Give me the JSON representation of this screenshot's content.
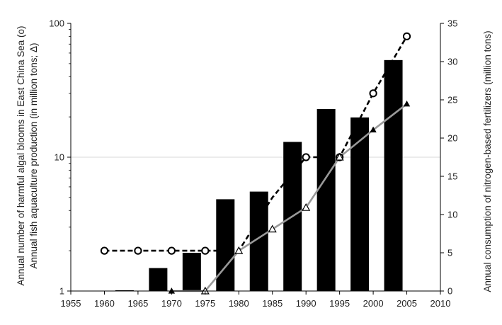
{
  "chart_data": {
    "type": "bar",
    "x_ticks": [
      "1955",
      "1960",
      "1965",
      "1970",
      "1975",
      "1980",
      "1985",
      "1990",
      "1995",
      "2000",
      "2005",
      "2010"
    ],
    "xlim": [
      1955,
      2010
    ],
    "y_left": {
      "label_line1": "Annual number of harmful algal blooms in East China Sea (o)",
      "label_line2": "Annual fish aquaculture production (in million tons; Δ)",
      "scale": "log",
      "range": [
        1,
        100
      ],
      "ticks": [
        {
          "value": 1,
          "label": "1"
        },
        {
          "value": 10,
          "label": "10"
        },
        {
          "value": 100,
          "label": "100"
        }
      ]
    },
    "y_right": {
      "label": "Annual consumption of nitrogen-based fertilizers (million tons)",
      "scale": "linear",
      "range": [
        0,
        35
      ],
      "ticks": [
        {
          "value": 0,
          "label": "0"
        },
        {
          "value": 5,
          "label": "5"
        },
        {
          "value": 10,
          "label": "10"
        },
        {
          "value": 15,
          "label": "15"
        },
        {
          "value": 20,
          "label": "20"
        },
        {
          "value": 25,
          "label": "25"
        },
        {
          "value": 30,
          "label": "30"
        },
        {
          "value": 35,
          "label": "35"
        }
      ]
    },
    "grid": "horizontal at 10 on left axis",
    "legend": "none",
    "series": [
      {
        "kind": "bar",
        "axis": "right",
        "color": "#000000",
        "points": [
          {
            "x": 1963,
            "y": 0.1
          },
          {
            "x": 1968,
            "y": 3.0
          },
          {
            "x": 1973,
            "y": 5.0
          },
          {
            "x": 1978,
            "y": 12.0
          },
          {
            "x": 1983,
            "y": 13.0
          },
          {
            "x": 1988,
            "y": 19.5
          },
          {
            "x": 1993,
            "y": 23.8
          },
          {
            "x": 1998,
            "y": 22.7
          },
          {
            "x": 2003,
            "y": 30.2
          }
        ]
      },
      {
        "kind": "line",
        "axis": "left",
        "style": "dashed",
        "marker": "circle",
        "color": "#000000",
        "points": [
          {
            "x": 1960,
            "y": 2
          },
          {
            "x": 1965,
            "y": 2
          },
          {
            "x": 1970,
            "y": 2
          },
          {
            "x": 1975,
            "y": 2
          },
          {
            "x": 1980,
            "y": 2
          },
          {
            "x": 1985,
            "y": 5
          },
          {
            "x": 1990,
            "y": 10
          },
          {
            "x": 1995,
            "y": 10
          },
          {
            "x": 2000,
            "y": 30
          },
          {
            "x": 2005,
            "y": 80
          }
        ],
        "markers_at": [
          1960,
          1965,
          1970,
          1975,
          1990,
          1995,
          2000,
          2005
        ]
      },
      {
        "kind": "line",
        "axis": "left",
        "style": "solid",
        "marker": "triangle",
        "color": "#999999",
        "points": [
          {
            "x": 1970,
            "y": 1.0
          },
          {
            "x": 1975,
            "y": 1.0
          },
          {
            "x": 1980,
            "y": 2.0
          },
          {
            "x": 1985,
            "y": 2.9
          },
          {
            "x": 1990,
            "y": 4.2
          },
          {
            "x": 1995,
            "y": 10.0
          },
          {
            "x": 2000,
            "y": 16.0
          },
          {
            "x": 2005,
            "y": 25.0
          }
        ],
        "filled_markers_at": [
          1970,
          2000,
          2005
        ]
      }
    ]
  }
}
